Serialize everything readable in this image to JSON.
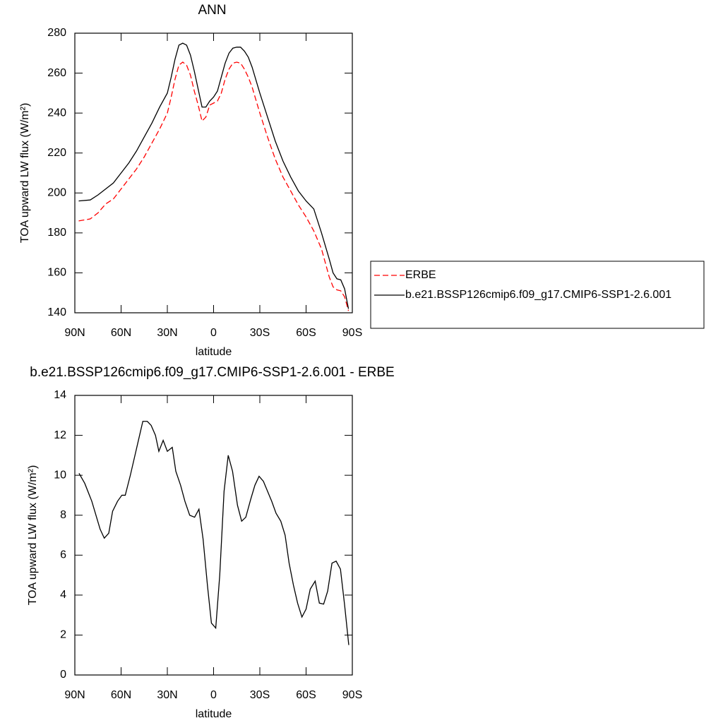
{
  "chart_data": [
    {
      "type": "line",
      "title": "ANN",
      "xlabel": "latitude",
      "ylabel": "TOA upward LW flux (W/m²)",
      "x": [
        87.5,
        80,
        75,
        70,
        65,
        60,
        55,
        50,
        45,
        40,
        35,
        30,
        27.5,
        25,
        22.5,
        20,
        17.5,
        15,
        12.5,
        10,
        7.5,
        5,
        2.5,
        0,
        -2.5,
        -5,
        -7.5,
        -10,
        -12.5,
        -15,
        -17.5,
        -20,
        -22.5,
        -25,
        -30,
        -35,
        -40,
        -45,
        -50,
        -55,
        -60,
        -65,
        -70,
        -75,
        -77.5,
        -80,
        -82.5,
        -85,
        -87.5
      ],
      "series": [
        {
          "name": "ERBE",
          "color": "#ff0000",
          "style": "dashed",
          "values": [
            186,
            187,
            190,
            194.5,
            197,
            202,
            207,
            212,
            218,
            225,
            232,
            240,
            248,
            257,
            264,
            265.5,
            264,
            259,
            251,
            244,
            236,
            238,
            244,
            245,
            246,
            250,
            257,
            262,
            265,
            265.5,
            265,
            262,
            258,
            253,
            240,
            228,
            217,
            208,
            201,
            194,
            188,
            181,
            172,
            158,
            153,
            151.5,
            151,
            148,
            141
          ]
        },
        {
          "name": "b.e21.BSSP126cmip6.f09_g17.CMIP6-SSP1-2.6.001",
          "color": "#000000",
          "style": "solid",
          "values": [
            196,
            196.5,
            199,
            202,
            205,
            210,
            215,
            221,
            228,
            235,
            243,
            250,
            258,
            267,
            274,
            275,
            274,
            269,
            261,
            252,
            243,
            243,
            246,
            248,
            251,
            258,
            265,
            270,
            272.5,
            273,
            273,
            271,
            268,
            263,
            250,
            238,
            226,
            216,
            208,
            201,
            196,
            192,
            180,
            167,
            160,
            157,
            156.5,
            152,
            142
          ]
        }
      ],
      "xlim": [
        90,
        -90
      ],
      "xticks": [
        {
          "value": 90,
          "label": "90N"
        },
        {
          "value": 60,
          "label": "60N"
        },
        {
          "value": 30,
          "label": "30N"
        },
        0,
        {
          "value": -30,
          "label": "30S"
        },
        {
          "value": -60,
          "label": "60S"
        },
        {
          "value": -90,
          "label": "90S"
        }
      ],
      "ylim": [
        140,
        280
      ],
      "yticks": [
        140,
        160,
        180,
        200,
        220,
        240,
        260,
        280
      ],
      "legend": "right"
    },
    {
      "type": "line",
      "title": "b.e21.BSSP126cmip6.f09_g17.CMIP6-SSP1-2.6.001 - ERBE",
      "xlabel": "latitude",
      "ylabel": "TOA upward LW flux (W/m²)",
      "x": [
        87.3,
        83.6,
        79,
        73.6,
        70.9,
        68,
        65.5,
        62.3,
        59.5,
        57.3,
        54,
        51,
        48,
        45.9,
        43,
        40.5,
        37.7,
        35.5,
        32.7,
        30,
        26.8,
        24.5,
        21.4,
        18.6,
        15.5,
        12.3,
        9.5,
        6.8,
        4,
        1.4,
        -1.4,
        -4,
        -6.8,
        -9.5,
        -12.3,
        -15.5,
        -18.2,
        -20.9,
        -24.1,
        -26.8,
        -29.5,
        -32.3,
        -35,
        -37.7,
        -40.5,
        -43.6,
        -46.4,
        -49,
        -51.8,
        -54.5,
        -57.3,
        -60,
        -62.7,
        -65.9,
        -68.6,
        -71.4,
        -74,
        -76.8,
        -79.5,
        -82.3,
        -85,
        -87.7
      ],
      "series": [
        {
          "color": "#000000",
          "style": "solid",
          "values": [
            10.1,
            9.6,
            8.7,
            7.3,
            6.85,
            7.1,
            8.2,
            8.7,
            9.0,
            9.0,
            10.0,
            11.0,
            12.0,
            12.7,
            12.7,
            12.5,
            12.0,
            11.2,
            11.75,
            11.2,
            11.4,
            10.2,
            9.5,
            8.7,
            8.0,
            7.9,
            8.3,
            6.8,
            4.5,
            2.6,
            2.35,
            5.0,
            9.2,
            11.0,
            10.2,
            8.5,
            7.7,
            7.9,
            8.8,
            9.5,
            9.95,
            9.7,
            9.2,
            8.7,
            8.1,
            7.7,
            7.0,
            5.6,
            4.5,
            3.6,
            2.9,
            3.3,
            4.3,
            4.7,
            3.6,
            3.55,
            4.2,
            5.6,
            5.7,
            5.3,
            3.5,
            1.5
          ]
        }
      ],
      "xlim": [
        90,
        -90
      ],
      "xticks": [
        {
          "value": 90,
          "label": "90N"
        },
        {
          "value": 60,
          "label": "60N"
        },
        {
          "value": 30,
          "label": "30N"
        },
        0,
        {
          "value": -30,
          "label": "30S"
        },
        {
          "value": -60,
          "label": "60S"
        },
        {
          "value": -90,
          "label": "90S"
        }
      ],
      "ylim": [
        0,
        14
      ],
      "yticks": [
        0,
        2,
        4,
        6,
        8,
        10,
        12,
        14
      ]
    }
  ]
}
